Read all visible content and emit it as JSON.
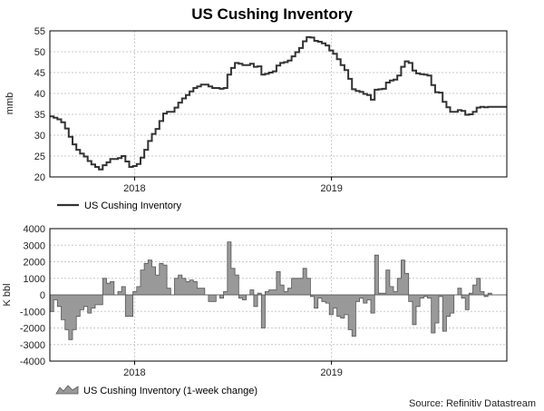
{
  "title": "US Cushing Inventory",
  "source": "Source: Refinitiv Datastream",
  "colors": {
    "line": "#333333",
    "area_fill": "#999999",
    "area_stroke": "#555555",
    "grid": "#c8c8c8"
  },
  "chart_data": [
    {
      "type": "line",
      "ylabel": "mmb",
      "ylim": [
        20,
        55
      ],
      "yticks": [
        20,
        25,
        30,
        35,
        40,
        45,
        50,
        55
      ],
      "x_range": [
        "2017-07-28",
        "2019-11-22"
      ],
      "xtick_labels": [
        {
          "date": "2018-01-01",
          "label": "2018"
        },
        {
          "date": "2019-01-01",
          "label": "2019"
        }
      ],
      "grid": true,
      "legend": "bottom-left",
      "series": [
        {
          "name": "US Cushing Inventory",
          "x": [
            "2017-07-28",
            "2017-08-04",
            "2017-08-11",
            "2017-08-18",
            "2017-08-25",
            "2017-09-01",
            "2017-09-08",
            "2017-09-15",
            "2017-09-22",
            "2017-09-29",
            "2017-10-06",
            "2017-10-13",
            "2017-10-20",
            "2017-10-27",
            "2017-11-03",
            "2017-11-10",
            "2017-11-17",
            "2017-11-24",
            "2017-12-01",
            "2017-12-08",
            "2017-12-15",
            "2017-12-22",
            "2017-12-29",
            "2018-01-05",
            "2018-01-12",
            "2018-01-19",
            "2018-01-26",
            "2018-02-02",
            "2018-02-09",
            "2018-02-16",
            "2018-02-23",
            "2018-03-02",
            "2018-03-09",
            "2018-03-16",
            "2018-03-23",
            "2018-03-30",
            "2018-04-06",
            "2018-04-13",
            "2018-04-20",
            "2018-04-27",
            "2018-05-04",
            "2018-05-11",
            "2018-05-18",
            "2018-05-25",
            "2018-06-01",
            "2018-06-08",
            "2018-06-15",
            "2018-06-22",
            "2018-06-29",
            "2018-07-06",
            "2018-07-13",
            "2018-07-20",
            "2018-07-27",
            "2018-08-03",
            "2018-08-10",
            "2018-08-17",
            "2018-08-24",
            "2018-08-31",
            "2018-09-07",
            "2018-09-14",
            "2018-09-21",
            "2018-09-28",
            "2018-10-05",
            "2018-10-12",
            "2018-10-19",
            "2018-10-26",
            "2018-11-02",
            "2018-11-09",
            "2018-11-16",
            "2018-11-23",
            "2018-11-30",
            "2018-12-07",
            "2018-12-14",
            "2018-12-21",
            "2018-12-28",
            "2019-01-04",
            "2019-01-11",
            "2019-01-18",
            "2019-01-25",
            "2019-02-01",
            "2019-02-08",
            "2019-02-15",
            "2019-02-22",
            "2019-03-01",
            "2019-03-08",
            "2019-03-15",
            "2019-03-22",
            "2019-03-29",
            "2019-04-05",
            "2019-04-12",
            "2019-04-19",
            "2019-04-26",
            "2019-05-03",
            "2019-05-10",
            "2019-05-17",
            "2019-05-24",
            "2019-05-31",
            "2019-06-07",
            "2019-06-14",
            "2019-06-21",
            "2019-06-28",
            "2019-07-05",
            "2019-07-12",
            "2019-07-19",
            "2019-07-26",
            "2019-08-02",
            "2019-08-09",
            "2019-08-16",
            "2019-08-23",
            "2019-08-30",
            "2019-09-06",
            "2019-09-13",
            "2019-09-20",
            "2019-09-27",
            "2019-10-04",
            "2019-10-11",
            "2019-10-18",
            "2019-10-25",
            "2019-11-01",
            "2019-11-08",
            "2019-11-15",
            "2019-11-22"
          ],
          "values": [
            34.5,
            34.2,
            33.8,
            33.1,
            31.6,
            29.6,
            27.8,
            26.5,
            25.6,
            24.9,
            23.8,
            23.0,
            22.4,
            21.8,
            22.8,
            23.5,
            24.3,
            24.3,
            24.5,
            25.0,
            23.7,
            22.4,
            22.6,
            23.1,
            24.6,
            26.5,
            28.6,
            30.3,
            31.5,
            33.4,
            35.2,
            35.6,
            35.6,
            36.6,
            37.8,
            38.8,
            39.6,
            40.5,
            41.3,
            41.7,
            42.1,
            42.1,
            41.7,
            41.3,
            41.3,
            41.1,
            41.3,
            44.5,
            46.1,
            47.3,
            47.1,
            46.8,
            46.8,
            47.1,
            46.4,
            46.5,
            44.5,
            44.7,
            45.0,
            45.3,
            46.7,
            47.3,
            47.5,
            47.9,
            48.9,
            49.9,
            50.9,
            52.5,
            53.5,
            53.4,
            52.6,
            52.4,
            52.0,
            51.5,
            50.3,
            49.5,
            48.2,
            46.8,
            45.6,
            43.5,
            41.0,
            40.6,
            40.4,
            39.9,
            39.6,
            38.5,
            40.9,
            41.0,
            41.1,
            42.6,
            43.1,
            43.3,
            44.3,
            46.4,
            47.7,
            47.3,
            45.5,
            44.8,
            44.6,
            44.5,
            44.3,
            42.0,
            40.3,
            40.2,
            38.0,
            36.7,
            35.6,
            35.6,
            36.0,
            35.8,
            34.9,
            35.0,
            35.6,
            36.6,
            36.8,
            36.7,
            36.8,
            36.8,
            36.8,
            36.8,
            36.8,
            36.8
          ]
        }
      ]
    },
    {
      "type": "area",
      "ylabel": "K bbl",
      "ylim": [
        -4000,
        4000
      ],
      "yticks": [
        -4000,
        -3000,
        -2000,
        -1000,
        0,
        1000,
        2000,
        3000,
        4000
      ],
      "x_range": [
        "2017-07-28",
        "2019-11-22"
      ],
      "xtick_labels": [
        {
          "date": "2018-01-01",
          "label": "2018"
        },
        {
          "date": "2019-01-01",
          "label": "2019"
        }
      ],
      "grid": true,
      "legend": "bottom-left",
      "series": [
        {
          "name": "US Cushing Inventory (1-week change)",
          "x": [
            "2017-07-28",
            "2017-08-04",
            "2017-08-11",
            "2017-08-18",
            "2017-08-25",
            "2017-09-01",
            "2017-09-08",
            "2017-09-15",
            "2017-09-22",
            "2017-09-29",
            "2017-10-06",
            "2017-10-13",
            "2017-10-20",
            "2017-10-27",
            "2017-11-03",
            "2017-11-10",
            "2017-11-17",
            "2017-11-24",
            "2017-12-01",
            "2017-12-08",
            "2017-12-15",
            "2017-12-22",
            "2017-12-29",
            "2018-01-05",
            "2018-01-12",
            "2018-01-19",
            "2018-01-26",
            "2018-02-02",
            "2018-02-09",
            "2018-02-16",
            "2018-02-23",
            "2018-03-02",
            "2018-03-09",
            "2018-03-16",
            "2018-03-23",
            "2018-03-30",
            "2018-04-06",
            "2018-04-13",
            "2018-04-20",
            "2018-04-27",
            "2018-05-04",
            "2018-05-11",
            "2018-05-18",
            "2018-05-25",
            "2018-06-01",
            "2018-06-08",
            "2018-06-15",
            "2018-06-22",
            "2018-06-29",
            "2018-07-06",
            "2018-07-13",
            "2018-07-20",
            "2018-07-27",
            "2018-08-03",
            "2018-08-10",
            "2018-08-17",
            "2018-08-24",
            "2018-08-31",
            "2018-09-07",
            "2018-09-14",
            "2018-09-21",
            "2018-09-28",
            "2018-10-05",
            "2018-10-12",
            "2018-10-19",
            "2018-10-26",
            "2018-11-02",
            "2018-11-09",
            "2018-11-16",
            "2018-11-23",
            "2018-11-30",
            "2018-12-07",
            "2018-12-14",
            "2018-12-21",
            "2018-12-28",
            "2019-01-04",
            "2019-01-11",
            "2019-01-18",
            "2019-01-25",
            "2019-02-01",
            "2019-02-08",
            "2019-02-15",
            "2019-02-22",
            "2019-03-01",
            "2019-03-08",
            "2019-03-15",
            "2019-03-22",
            "2019-03-29",
            "2019-04-05",
            "2019-04-12",
            "2019-04-19",
            "2019-04-26",
            "2019-05-03",
            "2019-05-10",
            "2019-05-17",
            "2019-05-24",
            "2019-05-31",
            "2019-06-07",
            "2019-06-14",
            "2019-06-21",
            "2019-06-28",
            "2019-07-05",
            "2019-07-12",
            "2019-07-19",
            "2019-07-26",
            "2019-08-02",
            "2019-08-09",
            "2019-08-16",
            "2019-08-23",
            "2019-08-30",
            "2019-09-06",
            "2019-09-13",
            "2019-09-20",
            "2019-09-27",
            "2019-10-04",
            "2019-10-11",
            "2019-10-18",
            "2019-10-25",
            "2019-11-01",
            "2019-11-08",
            "2019-11-15",
            "2019-11-22"
          ],
          "values": [
            -1000,
            -300,
            -700,
            -1500,
            -2100,
            -2700,
            -2100,
            -1300,
            -900,
            -700,
            -1100,
            -800,
            -600,
            -600,
            1000,
            700,
            800,
            0,
            200,
            500,
            -1300,
            -1300,
            200,
            500,
            1500,
            1900,
            2100,
            1700,
            1200,
            1900,
            1800,
            400,
            0,
            1000,
            1200,
            1000,
            800,
            900,
            800,
            400,
            400,
            0,
            -400,
            -400,
            0,
            -200,
            200,
            3200,
            1600,
            1200,
            -200,
            -300,
            0,
            300,
            -700,
            100,
            -2000,
            200,
            300,
            300,
            1400,
            600,
            200,
            400,
            1000,
            1000,
            1000,
            1600,
            1000,
            -100,
            -800,
            -200,
            -400,
            -500,
            -1200,
            -800,
            -1300,
            -1400,
            -1200,
            -2100,
            -2500,
            -400,
            -200,
            -500,
            -300,
            -1100,
            2400,
            100,
            100,
            1500,
            500,
            200,
            1000,
            2100,
            1300,
            -400,
            -1800,
            -700,
            -200,
            -100,
            -200,
            -2300,
            -1700,
            -100,
            -2200,
            -1300,
            -1100,
            0,
            400,
            -200,
            -900,
            100,
            600,
            1000,
            200,
            -100,
            100,
            0,
            0,
            0,
            0,
            0
          ]
        }
      ]
    }
  ]
}
